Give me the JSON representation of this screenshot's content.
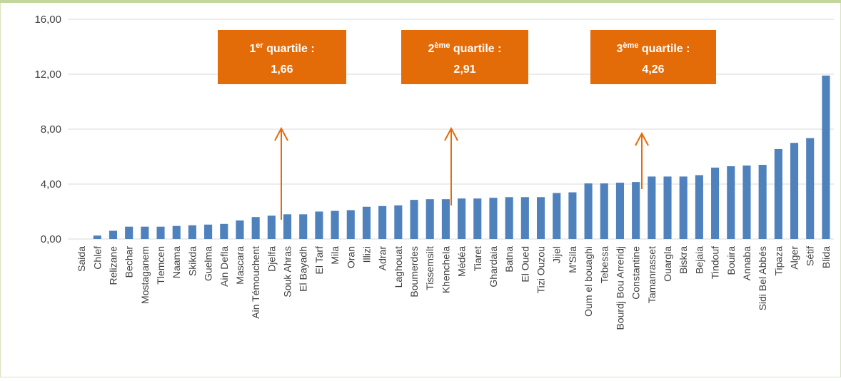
{
  "chart_data": {
    "type": "bar",
    "categories": [
      "Saida",
      "Chlef",
      "Relizane",
      "Bechar",
      "Mostaganem",
      "Tlemcen",
      "Naama",
      "Skikda",
      "Guelma",
      "Ain Defla",
      "Mascara",
      "Ain Témouchent",
      "Djelfa",
      "Souk Ahras",
      "El Bayadh",
      "El Tarf",
      "Mila",
      "Oran",
      "Illizi",
      "Adrar",
      "Laghouat",
      "Boumerdes",
      "Tissemsilt",
      "Khenchela",
      "Médéa",
      "Tiaret",
      "Ghardaia",
      "Batna",
      "El Oued",
      "Tizi Ouzou",
      "Jijel",
      "M'Sila",
      "Oum el bouaghi",
      "Tebessa",
      "Bourdj Bou Arreridj",
      "Constantine",
      "Tamanrasset",
      "Ouargla",
      "Biskra",
      "Bejaia",
      "Tindouf",
      "Bouira",
      "Annaba",
      "Sidi Bel Abbés",
      "Tipaza",
      "Alger",
      "Sétif",
      "Blida"
    ],
    "values": [
      0,
      0.25,
      0.6,
      0.9,
      0.9,
      0.9,
      0.95,
      1.0,
      1.05,
      1.1,
      1.35,
      1.6,
      1.7,
      1.8,
      1.8,
      2.0,
      2.05,
      2.1,
      2.35,
      2.4,
      2.45,
      2.85,
      2.9,
      2.9,
      2.95,
      2.95,
      3.0,
      3.05,
      3.05,
      3.05,
      3.35,
      3.4,
      4.05,
      4.05,
      4.1,
      4.15,
      4.55,
      4.55,
      4.55,
      4.65,
      5.2,
      5.3,
      5.35,
      5.4,
      6.55,
      7.0,
      7.35,
      11.9
    ],
    "color": "#4f81bd",
    "ylim": [
      0,
      16
    ],
    "yticks": [
      {
        "value": 0,
        "label": "0,00"
      },
      {
        "value": 4,
        "label": "4,00"
      },
      {
        "value": 8,
        "label": "8,00"
      },
      {
        "value": 12,
        "label": "12,00"
      },
      {
        "value": 16,
        "label": "16,00"
      }
    ],
    "grid": true,
    "annotations": [
      {
        "ordinal": "1",
        "suffix": "er",
        "text": " quartile :",
        "value": 1.66,
        "value_label": "1,66"
      },
      {
        "ordinal": "2",
        "suffix": "ème",
        "text": " quartile :",
        "value": 2.91,
        "value_label": "2,91"
      },
      {
        "ordinal": "3",
        "suffix": "ème",
        "text": " quartile :",
        "value": 4.26,
        "value_label": "4,26"
      }
    ]
  }
}
